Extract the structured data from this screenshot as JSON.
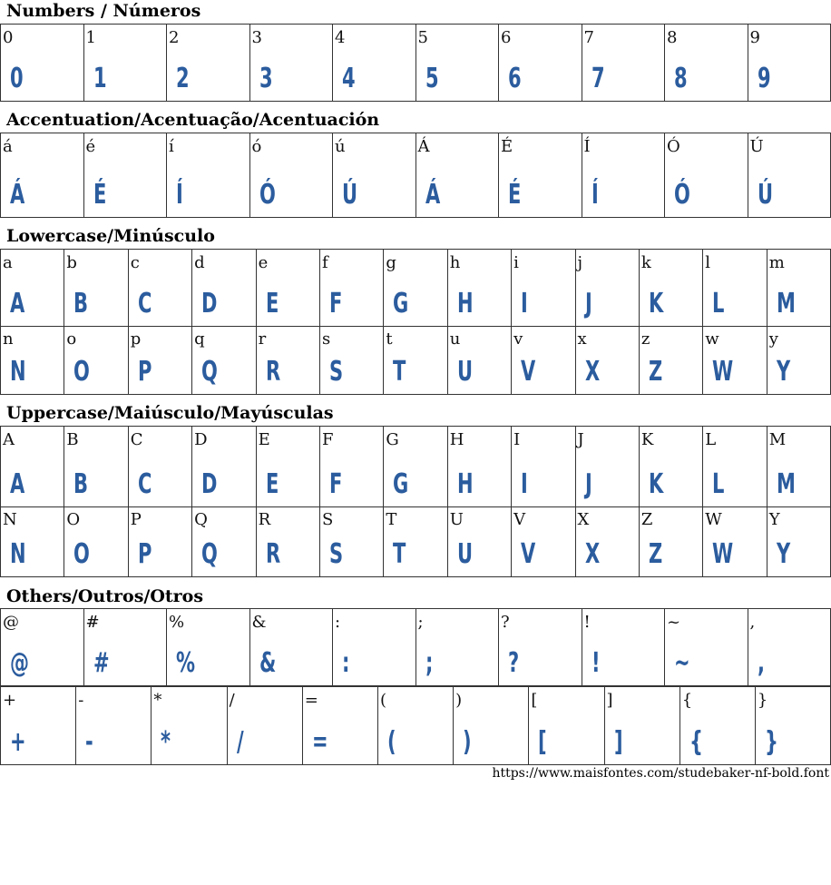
{
  "glyph_color": "#2b5c9e",
  "sections": [
    {
      "title": "Numbers / Números",
      "rows": [
        [
          "0",
          "1",
          "2",
          "3",
          "4",
          "5",
          "6",
          "7",
          "8",
          "9"
        ]
      ]
    },
    {
      "title": "Accentuation/Acentuação/Acentuación",
      "rows": [
        [
          "á",
          "é",
          "í",
          "ó",
          "ú",
          "Á",
          "É",
          "Í",
          "Ó",
          "Ú"
        ]
      ]
    },
    {
      "title": "Lowercase/Minúsculo",
      "rows": [
        [
          "a",
          "b",
          "c",
          "d",
          "e",
          "f",
          "g",
          "h",
          "i",
          "j",
          "k",
          "l",
          "m"
        ],
        [
          "n",
          "o",
          "p",
          "q",
          "r",
          "s",
          "t",
          "u",
          "v",
          "x",
          "z",
          "w",
          "y"
        ]
      ]
    },
    {
      "title": "Uppercase/Maiúsculo/Mayúsculas",
      "rows": [
        [
          "A",
          "B",
          "C",
          "D",
          "E",
          "F",
          "G",
          "H",
          "I",
          "J",
          "K",
          "L",
          "M"
        ],
        [
          "N",
          "O",
          "P",
          "Q",
          "R",
          "S",
          "T",
          "U",
          "V",
          "X",
          "Z",
          "W",
          "Y"
        ]
      ]
    },
    {
      "title": "Others/Outros/Otros",
      "rows": [
        [
          "@",
          "#",
          "%",
          "&",
          ":",
          ";",
          "?",
          "!",
          "~",
          ","
        ],
        [
          "+",
          "-",
          "*",
          "/",
          "=",
          "(",
          ")",
          "[",
          "]",
          "{",
          "}"
        ]
      ]
    }
  ],
  "footer": {
    "url": "https://www.maisfontes.com/studebaker-nf-bold.font"
  }
}
